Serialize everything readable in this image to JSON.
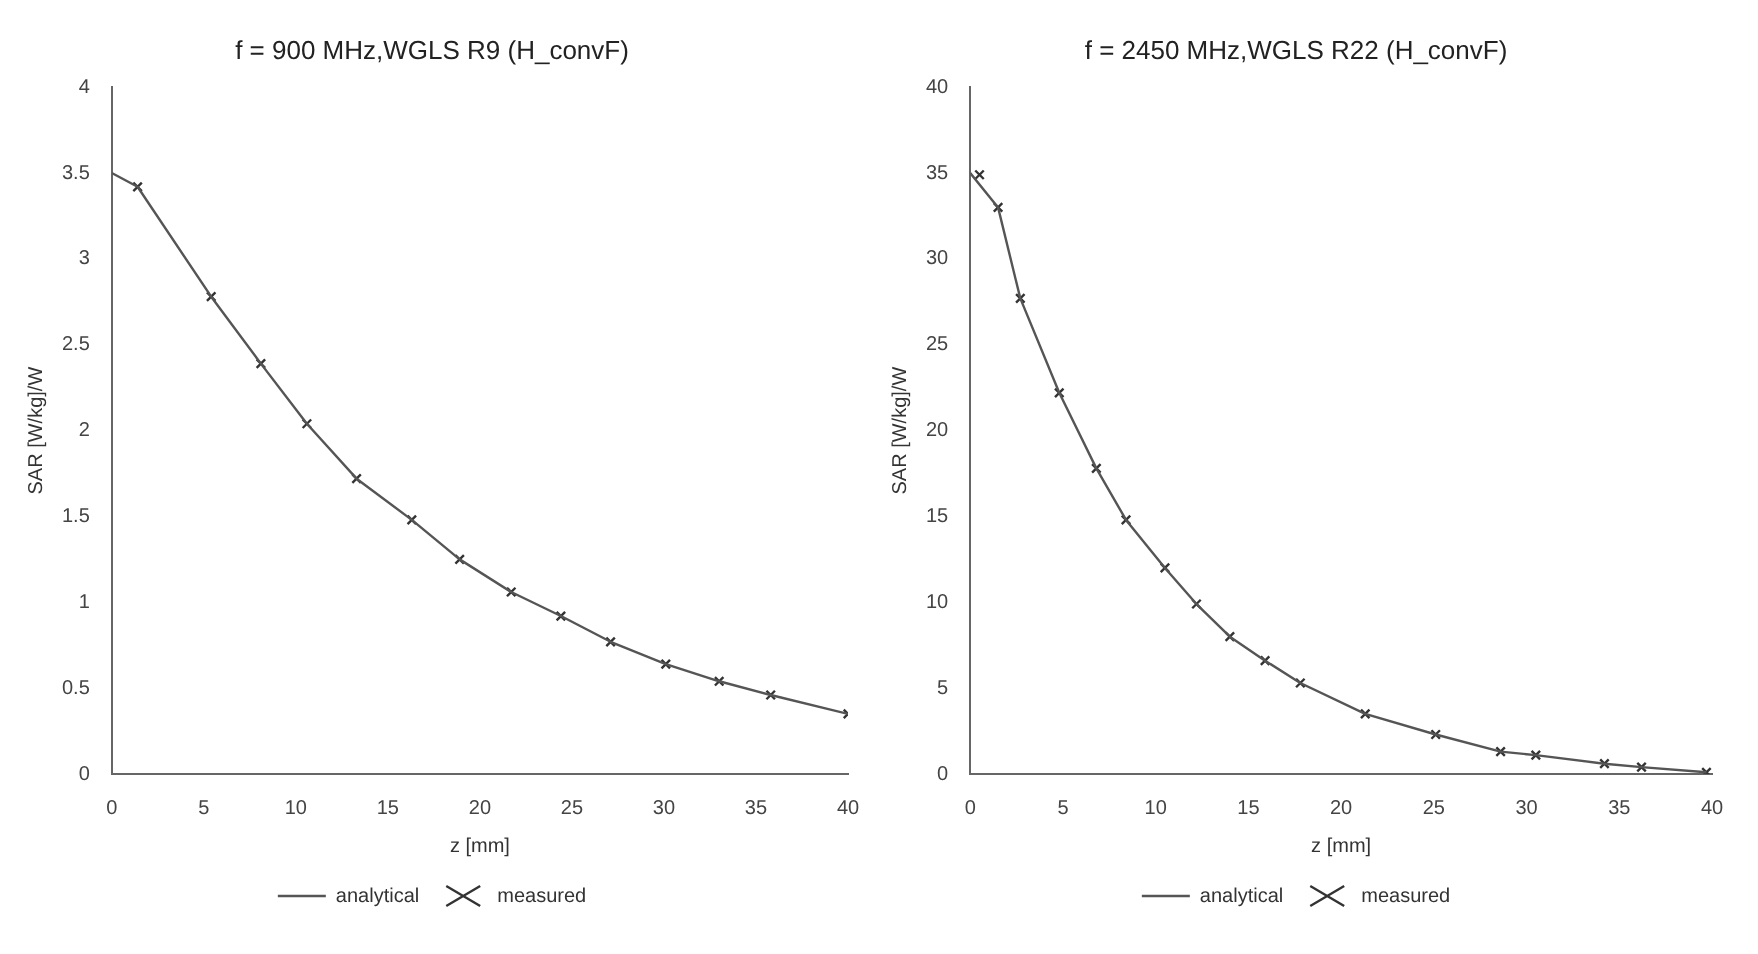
{
  "chart_data": [
    {
      "type": "line",
      "title": "f = 900 MHz,WGLS R9 (H_convF)",
      "xlabel": "z [mm]",
      "ylabel": "SAR [W/kg]/W",
      "xlim": [
        0,
        40
      ],
      "xticks": [
        0,
        5,
        10,
        15,
        20,
        25,
        30,
        35,
        40
      ],
      "ylim": [
        0,
        4
      ],
      "yticks": [
        0,
        0.5,
        1,
        1.5,
        2,
        2.5,
        3,
        3.5,
        4
      ],
      "legend": "bottom",
      "grid": false,
      "series": [
        {
          "name": "analytical",
          "type": "line",
          "color": "#555555",
          "marker": "none",
          "x": [
            0,
            1.4,
            5.4,
            8.1,
            10.6,
            13.3,
            16.3,
            18.9,
            21.7,
            24.4,
            27.1,
            30.1,
            33,
            35.8,
            40
          ],
          "values": [
            3.5,
            3.42,
            2.78,
            2.39,
            2.04,
            1.72,
            1.48,
            1.25,
            1.06,
            0.92,
            0.77,
            0.64,
            0.54,
            0.46,
            0.35
          ]
        },
        {
          "name": "measured",
          "type": "scatter",
          "color": "#333333",
          "marker": "cross",
          "x": [
            1.4,
            5.4,
            8.1,
            10.6,
            13.3,
            16.3,
            18.9,
            21.7,
            24.4,
            27.1,
            30.1,
            33,
            35.8,
            40
          ],
          "values": [
            3.42,
            2.78,
            2.39,
            2.04,
            1.72,
            1.48,
            1.25,
            1.06,
            0.92,
            0.77,
            0.64,
            0.54,
            0.46,
            0.35
          ]
        }
      ]
    },
    {
      "type": "line",
      "title": "f = 2450 MHz,WGLS R22 (H_convF)",
      "xlabel": "z [mm]",
      "ylabel": "SAR [W/kg]/W",
      "xlim": [
        0,
        40
      ],
      "xticks": [
        0,
        5,
        10,
        15,
        20,
        25,
        30,
        35,
        40
      ],
      "ylim": [
        0,
        40
      ],
      "yticks": [
        0,
        5,
        10,
        15,
        20,
        25,
        30,
        35,
        40
      ],
      "legend": "bottom",
      "grid": false,
      "series": [
        {
          "name": "analytical",
          "type": "line",
          "color": "#555555",
          "marker": "none",
          "x": [
            0,
            1.5,
            2.7,
            4.8,
            6.8,
            8.4,
            10.5,
            12.2,
            14,
            15.9,
            17.8,
            21.3,
            25.1,
            28.6,
            30.5,
            34.2,
            36.2,
            39.7
          ],
          "values": [
            35,
            33,
            27.7,
            22.2,
            17.8,
            14.8,
            12,
            9.9,
            8,
            6.6,
            5.3,
            3.5,
            2.3,
            1.3,
            1.1,
            0.6,
            0.4,
            0.1
          ]
        },
        {
          "name": "measured",
          "type": "scatter",
          "color": "#333333",
          "marker": "cross",
          "x": [
            0.5,
            1.5,
            2.7,
            4.8,
            6.8,
            8.4,
            10.5,
            12.2,
            14,
            15.9,
            17.8,
            21.3,
            25.1,
            28.6,
            30.5,
            34.2,
            36.2,
            39.7
          ],
          "values": [
            34.9,
            33,
            27.7,
            22.2,
            17.8,
            14.8,
            12,
            9.9,
            8,
            6.6,
            5.3,
            3.5,
            2.3,
            1.3,
            1.1,
            0.6,
            0.4,
            0.1
          ]
        }
      ]
    }
  ]
}
